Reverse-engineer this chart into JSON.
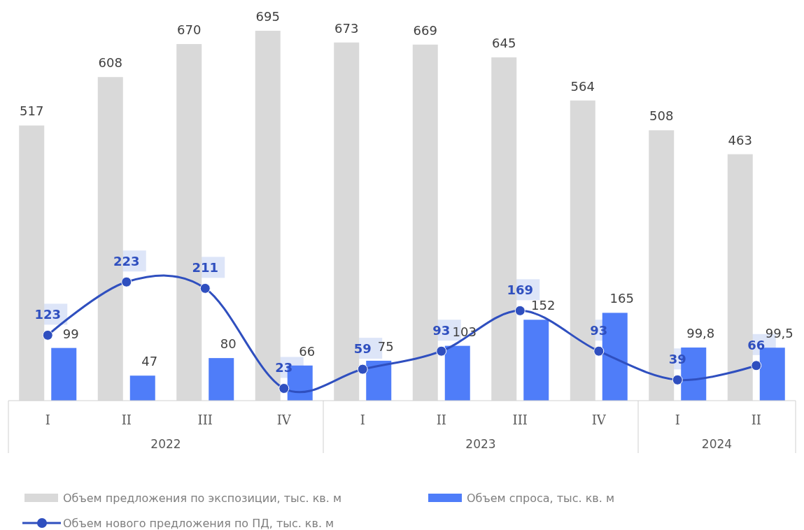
{
  "chart_data": {
    "type": "bar",
    "categories": [
      "I",
      "II",
      "III",
      "IV",
      "I",
      "II",
      "III",
      "IV",
      "I",
      "II"
    ],
    "annotations": [
      "2022",
      "2023",
      "2024"
    ],
    "series": [
      {
        "name": "Объем предложения по экспозиции, тыс. кв. м",
        "color": "#d9d9d9",
        "values": [
          517,
          608,
          670,
          695,
          673,
          669,
          645,
          564,
          508,
          463
        ]
      },
      {
        "name": "Объем спроса, тыс. кв. м",
        "color": "#4f7df9",
        "values": [
          99,
          47,
          80,
          66,
          75,
          103,
          152,
          165,
          99.8,
          99.5
        ],
        "value_labels": [
          "99",
          "47",
          "80",
          "66",
          "75",
          "103",
          "152",
          "165",
          "99,8",
          "99,5"
        ]
      },
      {
        "name": "Объем нового предложения по ПД, тыс. кв. м",
        "type": "line",
        "color": "#2f4fbf",
        "marker": "circle",
        "values": [
          123,
          223,
          211,
          23,
          59,
          93,
          169,
          93,
          39,
          66
        ]
      }
    ],
    "data_labels": true,
    "legend": "bottom",
    "grid": false
  }
}
